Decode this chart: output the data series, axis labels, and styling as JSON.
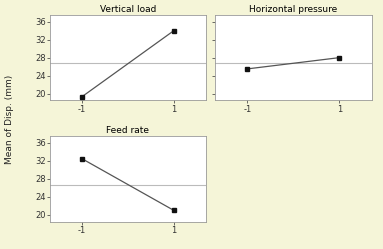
{
  "subplots": [
    {
      "title": "Vertical load",
      "x": [
        -1,
        1
      ],
      "y": [
        19.3,
        34.0
      ],
      "show_yticks": true
    },
    {
      "title": "Horizontal pressure",
      "x": [
        -1,
        1
      ],
      "y": [
        25.5,
        28.0
      ],
      "show_yticks": false
    },
    {
      "title": "Feed rate",
      "x": [
        -1,
        1
      ],
      "y": [
        32.5,
        21.0
      ],
      "show_yticks": true
    }
  ],
  "grand_mean": 26.7,
  "ylabel": "Mean of Disp. (mm)",
  "yticks": [
    20,
    24,
    28,
    32,
    36
  ],
  "xticks": [
    -1,
    1
  ],
  "xlim": [
    -1.7,
    1.7
  ],
  "ylim": [
    18.5,
    37.5
  ],
  "background_color": "#f5f5d8",
  "panel_background": "#ffffff",
  "line_color": "#555555",
  "point_color": "#111111",
  "mean_line_color": "#bbbbbb",
  "title_fontsize": 6.5,
  "tick_fontsize": 6,
  "ylabel_fontsize": 6.5
}
